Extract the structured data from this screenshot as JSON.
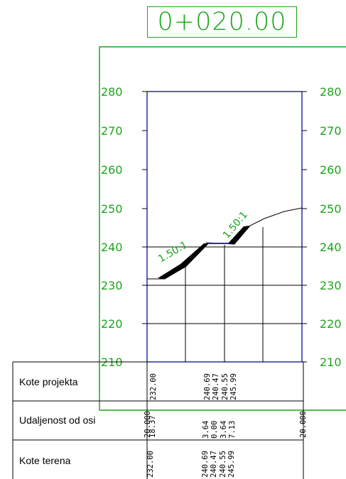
{
  "station": "0+020.00",
  "elevation_ticks": [
    "280",
    "270",
    "260",
    "250",
    "240",
    "230",
    "220",
    "210"
  ],
  "slope_labels": {
    "left": "1.50:1",
    "right": "1.50:1"
  },
  "table": {
    "rows": [
      "Kote projekta",
      "Udaljenost od osi",
      "Kote terena"
    ],
    "columns": [
      {
        "projekta": "232.00",
        "udaljenost": "20.000",
        "terena": "232.00"
      },
      {
        "projekta": "",
        "udaljenost": "18.37",
        "terena": ""
      },
      {
        "projekta": "240.69",
        "udaljenost": "3.64",
        "terena": "240.69"
      },
      {
        "projekta": "240.47",
        "udaljenost": "0.00",
        "terena": "240.47"
      },
      {
        "projekta": "240.55",
        "udaljenost": "3.64",
        "terena": "240.55"
      },
      {
        "projekta": "245.99",
        "udaljenost": "7.13",
        "terena": "245.99"
      },
      {
        "projekta": "",
        "udaljenost": "20.000",
        "terena": ""
      }
    ]
  },
  "colors": {
    "green": "#1aa61a",
    "blue": "#2b2bb0",
    "black": "#000000",
    "fill": "#000000"
  }
}
